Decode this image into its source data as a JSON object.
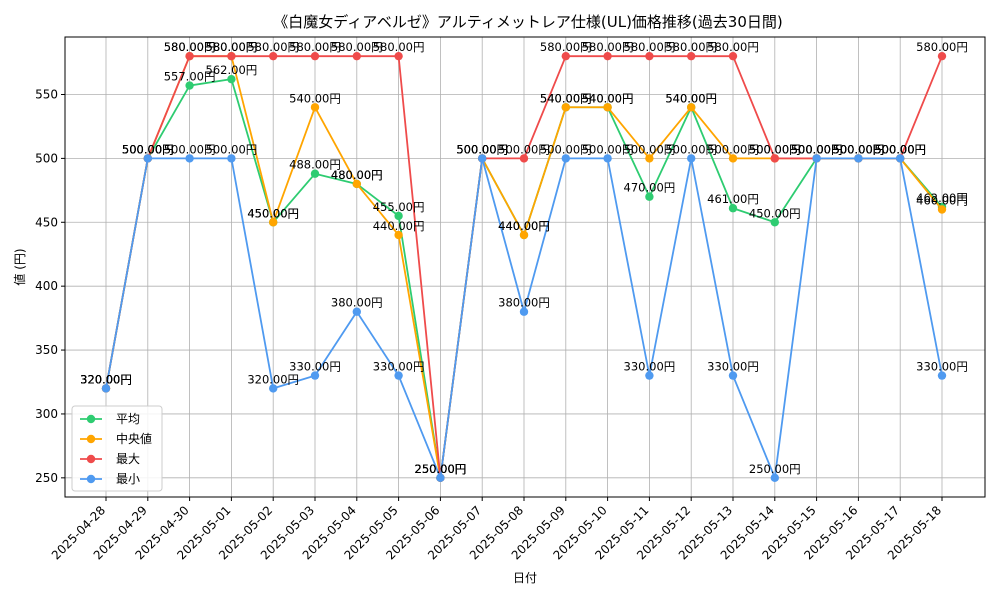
{
  "chart_data": {
    "type": "line",
    "title": "《白魔女ディアベルゼ》アルティメットレア仕様(UL)価格推移(過去30日間)",
    "xlabel": "日付",
    "ylabel": "値 (円)",
    "ylim": [
      235,
      595
    ],
    "yticks": [
      250,
      300,
      350,
      400,
      450,
      500,
      550
    ],
    "grid": true,
    "legend_position": "lower-left",
    "label_suffix": "円",
    "categories": [
      "2025-04-28",
      "2025-04-29",
      "2025-04-30",
      "2025-05-01",
      "2025-05-02",
      "2025-05-03",
      "2025-05-04",
      "2025-05-05",
      "2025-05-06",
      "2025-05-07",
      "2025-05-08",
      "2025-05-09",
      "2025-05-10",
      "2025-05-11",
      "2025-05-12",
      "2025-05-13",
      "2025-05-14",
      "2025-05-15",
      "2025-05-16",
      "2025-05-17",
      "2025-05-18"
    ],
    "series": [
      {
        "name": "平均",
        "color": "#2ecc71",
        "values": [
          320,
          500,
          557,
          562,
          450,
          488,
          480,
          455,
          250,
          500,
          440,
          540,
          540,
          470,
          540,
          461,
          450,
          500,
          500,
          500,
          462
        ]
      },
      {
        "name": "中央値",
        "color": "#ffa500",
        "values": [
          320,
          500,
          580,
          580,
          450,
          540,
          480,
          440,
          250,
          500,
          440,
          540,
          540,
          500,
          540,
          500,
          500,
          500,
          500,
          500,
          460
        ]
      },
      {
        "name": "最大",
        "color": "#ef4b4b",
        "values": [
          320,
          500,
          580,
          580,
          580,
          580,
          580,
          580,
          250,
          500,
          500,
          580,
          580,
          580,
          580,
          580,
          500,
          500,
          500,
          500,
          580
        ]
      },
      {
        "name": "最小",
        "color": "#4f9af0",
        "values": [
          320,
          500,
          500,
          500,
          320,
          330,
          380,
          330,
          250,
          500,
          380,
          500,
          500,
          330,
          500,
          330,
          250,
          500,
          500,
          500,
          330
        ]
      }
    ]
  }
}
